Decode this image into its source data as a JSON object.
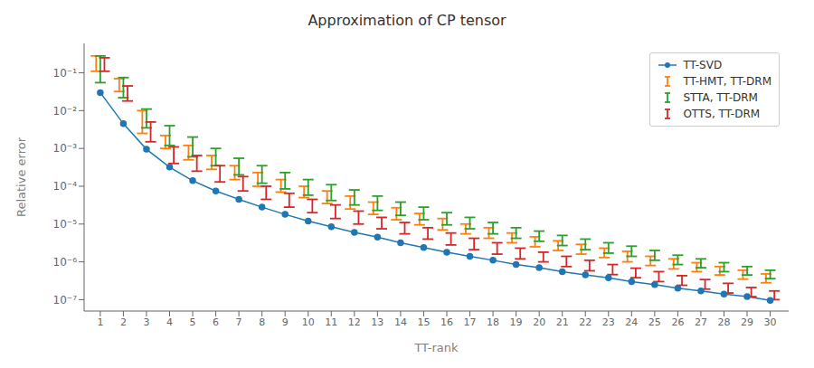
{
  "chart_data": {
    "type": "line",
    "title": "Approximation of CP tensor",
    "x_label": "TT-rank",
    "y_label": "Relative error",
    "log": "y",
    "grid": false,
    "legend": "upper right",
    "x": [
      1,
      2,
      3,
      4,
      5,
      6,
      7,
      8,
      9,
      10,
      11,
      12,
      13,
      14,
      15,
      16,
      17,
      18,
      19,
      20,
      21,
      22,
      23,
      24,
      25,
      26,
      27,
      28,
      29,
      30
    ],
    "xlim": [
      0.3,
      30.8
    ],
    "xticks": [
      1,
      2,
      3,
      4,
      5,
      6,
      7,
      8,
      9,
      10,
      11,
      12,
      13,
      14,
      15,
      16,
      17,
      18,
      19,
      20,
      21,
      22,
      23,
      24,
      25,
      26,
      27,
      28,
      29,
      30
    ],
    "ylim": [
      5e-08,
      0.6
    ],
    "yticks": [
      {
        "value": 1e-07,
        "label": "10⁻⁷"
      },
      {
        "value": 1e-06,
        "label": "10⁻⁶"
      },
      {
        "value": 1e-05,
        "label": "10⁻⁵"
      },
      {
        "value": 0.0001,
        "label": "10⁻⁴"
      },
      {
        "value": 0.001,
        "label": "10⁻³"
      },
      {
        "value": 0.01,
        "label": "10⁻²"
      },
      {
        "value": 0.1,
        "label": "10⁻¹"
      }
    ],
    "series": [
      {
        "name": "TT-SVD",
        "type": "line",
        "color": "#1f77b4",
        "marker": "circle",
        "values": [
          0.03,
          0.0045,
          0.00095,
          0.00032,
          0.00014,
          7.5e-05,
          4.5e-05,
          2.8e-05,
          1.8e-05,
          1.2e-05,
          8.5e-06,
          6e-06,
          4.5e-06,
          3.2e-06,
          2.4e-06,
          1.8e-06,
          1.4e-06,
          1.1e-06,
          8.5e-07,
          7e-07,
          5.5e-07,
          4.5e-07,
          3.8e-07,
          3e-07,
          2.5e-07,
          2e-07,
          1.7e-07,
          1.4e-07,
          1.2e-07,
          9.5e-08
        ]
      },
      {
        "name": "TT-HMT, TT-DRM",
        "type": "errorbar",
        "color": "#ff7f0e",
        "values": [
          0.16,
          0.05,
          0.0035,
          0.0015,
          0.0007,
          0.0004,
          0.00022,
          0.00015,
          0.0001,
          7e-05,
          5e-05,
          3.5e-05,
          2.5e-05,
          1.8e-05,
          1.3e-05,
          9.5e-06,
          7e-06,
          5.5e-06,
          4e-06,
          3.2e-06,
          2.5e-06,
          2e-06,
          1.6e-06,
          1.3e-06,
          1e-06,
          8.5e-07,
          7e-07,
          5.5e-07,
          4.5e-07,
          3.5e-07
        ],
        "lower": [
          0.11,
          0.032,
          0.0025,
          0.001,
          0.0005,
          0.00028,
          0.00015,
          0.0001,
          7e-05,
          5e-05,
          3.5e-05,
          2.5e-05,
          1.8e-05,
          1.3e-05,
          9.5e-06,
          7e-06,
          5.5e-06,
          4.2e-06,
          3.2e-06,
          2.5e-06,
          2e-06,
          1.6e-06,
          1.3e-06,
          1e-06,
          8e-07,
          6.5e-07,
          5.5e-07,
          4.5e-07,
          3.5e-07,
          2.8e-07
        ],
        "upper": [
          0.28,
          0.07,
          0.01,
          0.0022,
          0.0012,
          0.00065,
          0.00035,
          0.00023,
          0.00015,
          0.0001,
          7.5e-05,
          5.5e-05,
          3.8e-05,
          2.7e-05,
          1.9e-05,
          1.4e-05,
          1e-05,
          8e-06,
          5.8e-06,
          4.6e-06,
          3.6e-06,
          2.9e-06,
          2.3e-06,
          1.9e-06,
          1.4e-06,
          1.2e-06,
          9.5e-07,
          7.5e-07,
          6e-07,
          4.8e-07
        ]
      },
      {
        "name": "STTA, TT-DRM",
        "type": "errorbar",
        "color": "#2ca02c",
        "values": [
          0.13,
          0.045,
          0.0055,
          0.0018,
          0.0009,
          0.0005,
          0.0003,
          0.00018,
          0.00012,
          8e-05,
          6e-05,
          4.5e-05,
          3.2e-05,
          2.3e-05,
          1.8e-05,
          1.3e-05,
          1e-05,
          7.5e-06,
          5.5e-06,
          4.5e-06,
          3.5e-06,
          2.8e-06,
          2.2e-06,
          1.8e-06,
          1.4e-06,
          1.1e-06,
          9e-07,
          7e-07,
          5.5e-07,
          4.5e-07
        ],
        "lower": [
          0.055,
          0.022,
          0.0035,
          0.0012,
          0.0006,
          0.00035,
          0.0002,
          0.00012,
          8.5e-05,
          5.8e-05,
          4.2e-05,
          3.2e-05,
          2.3e-05,
          1.7e-05,
          1.3e-05,
          9.5e-06,
          7.5e-06,
          5.5e-06,
          4.2e-06,
          3.5e-06,
          2.7e-06,
          2.1e-06,
          1.7e-06,
          1.4e-06,
          1.1e-06,
          8.5e-07,
          7e-07,
          5.5e-07,
          4.5e-07,
          3.6e-07
        ],
        "upper": [
          0.28,
          0.075,
          0.011,
          0.004,
          0.002,
          0.001,
          0.00055,
          0.00035,
          0.00023,
          0.00015,
          0.00011,
          8e-05,
          5.5e-05,
          3.8e-05,
          2.8e-05,
          2e-05,
          1.5e-05,
          1.1e-05,
          8e-06,
          6.5e-06,
          5e-06,
          4e-06,
          3.2e-06,
          2.6e-06,
          2e-06,
          1.5e-06,
          1.2e-06,
          9.5e-07,
          7.5e-07,
          6e-07
        ]
      },
      {
        "name": "OTTS, TT-DRM",
        "type": "errorbar",
        "color": "#d62728",
        "values": [
          0.17,
          0.028,
          0.0025,
          0.00065,
          0.00038,
          0.0002,
          0.00011,
          6.5e-05,
          4e-05,
          2.8e-05,
          2e-05,
          1.4e-05,
          1e-05,
          7.5e-06,
          5.5e-06,
          3.8e-06,
          2.8e-06,
          2.2e-06,
          1.6e-06,
          1.3e-06,
          1e-06,
          7.8e-07,
          6.2e-07,
          5e-07,
          4e-07,
          3.2e-07,
          2.5e-07,
          2e-07,
          1.6e-07,
          1.3e-07
        ],
        "lower": [
          0.11,
          0.018,
          0.0015,
          0.0004,
          0.00025,
          0.00013,
          7.5e-05,
          4.5e-05,
          2.8e-05,
          2e-05,
          1.4e-05,
          1e-05,
          7.5e-06,
          5.5e-06,
          4e-06,
          2.8e-06,
          2.1e-06,
          1.6e-06,
          1.2e-06,
          1e-06,
          7.5e-07,
          5.8e-07,
          4.6e-07,
          3.8e-07,
          3e-07,
          2.4e-07,
          1.9e-07,
          1.5e-07,
          1.2e-07,
          1e-07
        ],
        "upper": [
          0.25,
          0.045,
          0.005,
          0.0011,
          0.00065,
          0.00035,
          0.00018,
          0.0001,
          6.5e-05,
          4.5e-05,
          3.2e-05,
          2.2e-05,
          1.5e-05,
          1.1e-05,
          8e-06,
          5.8e-06,
          4.2e-06,
          3.2e-06,
          2.3e-06,
          1.8e-06,
          1.4e-06,
          1.1e-06,
          8.5e-07,
          6.8e-07,
          5.5e-07,
          4.3e-07,
          3.4e-07,
          2.7e-07,
          2.1e-07,
          1.7e-07
        ]
      }
    ]
  }
}
